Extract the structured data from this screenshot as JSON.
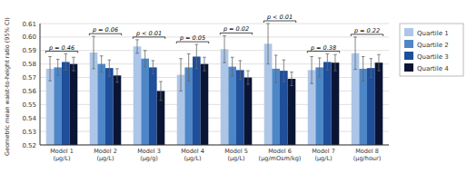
{
  "chart_data": {
    "type": "bar",
    "y_label": "Geometric mean waist-to-height ratio (95% CI)",
    "categories": [
      "Model 1\n(μg/L)",
      "Model 2\n(μg/L)",
      "Model 3\n(μg/g)",
      "Model 4\n(μg/L)",
      "Model 5\n(μg/L)",
      "Model 6\n(μg/mOsm/kg)",
      "Model 7\n(μg/L)",
      "Model 8\n(μg/hour)"
    ],
    "series": [
      {
        "name": "Quartile 1",
        "color": "#adc6e8",
        "values": [
          0.5765,
          0.5885,
          0.593,
          0.572,
          0.591,
          0.595,
          0.5755,
          0.588
        ],
        "errors": [
          0.009,
          0.012,
          0.005,
          0.012,
          0.01,
          0.015,
          0.01,
          0.012
        ]
      },
      {
        "name": "Quartile 2",
        "color": "#4e87c8",
        "values": [
          0.5775,
          0.58,
          0.584,
          0.5775,
          0.578,
          0.5765,
          0.5775,
          0.5765
        ],
        "errors": [
          0.006,
          0.006,
          0.006,
          0.01,
          0.007,
          0.01,
          0.007,
          0.009
        ]
      },
      {
        "name": "Quartile 3",
        "color": "#1f4e9a",
        "values": [
          0.5815,
          0.577,
          0.5775,
          0.5855,
          0.5755,
          0.575,
          0.5815,
          0.577
        ],
        "errors": [
          0.006,
          0.006,
          0.005,
          0.009,
          0.007,
          0.008,
          0.006,
          0.007
        ]
      },
      {
        "name": "Quartile 4",
        "color": "#0a1535",
        "values": [
          0.58,
          0.5715,
          0.56,
          0.58,
          0.57,
          0.569,
          0.581,
          0.581
        ],
        "errors": [
          0.005,
          0.005,
          0.007,
          0.005,
          0.005,
          0.005,
          0.006,
          0.006
        ]
      }
    ],
    "annotations": [
      "p = 0.46",
      "p = 0.06",
      "p < 0.01",
      "p = 0.05",
      "p = 0.02",
      "p < 0.01",
      "p = 0.38",
      "p = 0.22"
    ],
    "ylim": [
      0.52,
      0.61
    ],
    "yticks": [
      0.52,
      0.53,
      0.54,
      0.55,
      0.56,
      0.57,
      0.58,
      0.59,
      {
        "value": 0.6,
        "label": "0.60"
      },
      0.61
    ],
    "grid": true,
    "legend": "right"
  }
}
